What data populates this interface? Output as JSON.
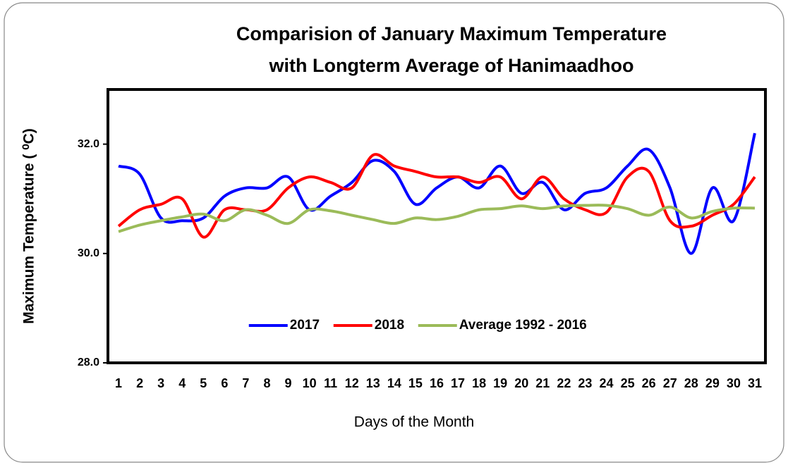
{
  "chart_data": {
    "type": "line",
    "title": [
      "Comparision of January Maximum Temperature",
      "with Longterm Average of Hanimaadhoo"
    ],
    "xlabel": "Days of the Month",
    "ylabel": "Maximum Temperature ( ⁰C)",
    "categories": [
      "1",
      "2",
      "3",
      "4",
      "5",
      "6",
      "7",
      "8",
      "9",
      "10",
      "11",
      "12",
      "13",
      "14",
      "15",
      "16",
      "17",
      "18",
      "19",
      "20",
      "21",
      "22",
      "23",
      "24",
      "25",
      "26",
      "27",
      "28",
      "29",
      "30",
      "31"
    ],
    "series": [
      {
        "name": "2017",
        "color": "#0000ff",
        "values": [
          31.6,
          31.45,
          30.65,
          30.6,
          30.65,
          31.05,
          31.2,
          31.2,
          31.4,
          30.8,
          31.05,
          31.3,
          31.7,
          31.5,
          30.9,
          31.2,
          31.4,
          31.2,
          31.6,
          31.1,
          31.3,
          30.8,
          31.1,
          31.2,
          31.6,
          31.9,
          31.2,
          30.0,
          31.2,
          30.6,
          32.2
        ]
      },
      {
        "name": "2018",
        "color": "#ff0000",
        "values": [
          30.5,
          30.8,
          30.9,
          31.0,
          30.3,
          30.8,
          30.8,
          30.8,
          31.2,
          31.4,
          31.3,
          31.2,
          31.8,
          31.6,
          31.5,
          31.4,
          31.4,
          31.3,
          31.4,
          31.0,
          31.4,
          31.0,
          30.8,
          30.75,
          31.4,
          31.5,
          30.6,
          30.5,
          30.7,
          30.9,
          31.4
        ]
      },
      {
        "name": "Average 1992 - 2016",
        "color": "#9bbb59",
        "values": [
          30.4,
          30.52,
          30.6,
          30.67,
          30.72,
          30.6,
          30.8,
          30.7,
          30.55,
          30.8,
          30.78,
          30.7,
          30.62,
          30.55,
          30.65,
          30.62,
          30.68,
          30.8,
          30.82,
          30.87,
          30.82,
          30.87,
          30.88,
          30.88,
          30.82,
          30.7,
          30.85,
          30.65,
          30.77,
          30.83,
          30.83
        ]
      }
    ],
    "ylim": [
      28,
      33
    ],
    "yticks": [
      {
        "value": 28,
        "label": "28.0"
      },
      {
        "value": 30,
        "label": "30.0"
      },
      {
        "value": 32,
        "label": "32.0"
      }
    ],
    "smooth": true,
    "legend": "lower center"
  }
}
